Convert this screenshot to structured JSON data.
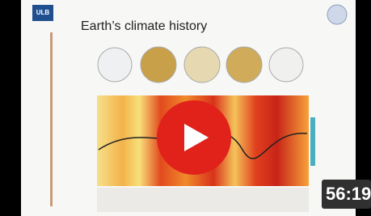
{
  "slide": {
    "logo": "ULB",
    "title": "Earth’s climate history"
  },
  "video": {
    "duration": "56:19"
  }
}
